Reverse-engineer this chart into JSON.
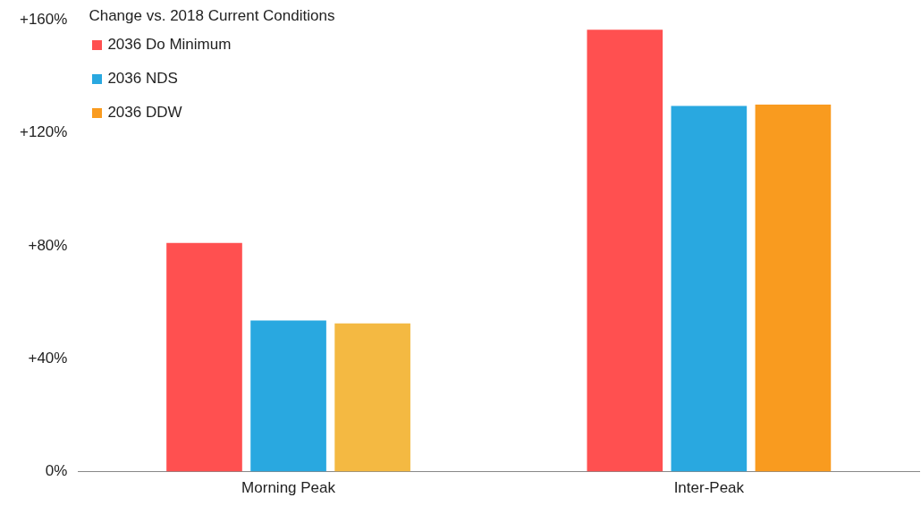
{
  "chart_data": {
    "type": "bar",
    "legend_title": "Change vs. 2018 Current Conditions",
    "categories": [
      "Morning Peak",
      "Inter-Peak"
    ],
    "series": [
      {
        "name": "2036 Do Minimum",
        "color": "#ff5050",
        "values": [
          81,
          156.5
        ]
      },
      {
        "name": "2036 NDS",
        "color": "#29a8e0",
        "values": [
          53.5,
          129.5
        ]
      },
      {
        "name": "2036 DDW",
        "color": "#f99b1f",
        "colors": [
          "#f4b942",
          "#f99b1f"
        ],
        "values": [
          52.5,
          130
        ]
      }
    ],
    "ylim": [
      0,
      160
    ],
    "yticks": [
      {
        "value": 0,
        "label": "0%"
      },
      {
        "value": 40,
        "label": "+40%"
      },
      {
        "value": 80,
        "label": "+80%"
      },
      {
        "value": 120,
        "label": "+120%"
      },
      {
        "value": 160,
        "label": "+160%"
      }
    ],
    "grid": false,
    "legend": "top left"
  }
}
